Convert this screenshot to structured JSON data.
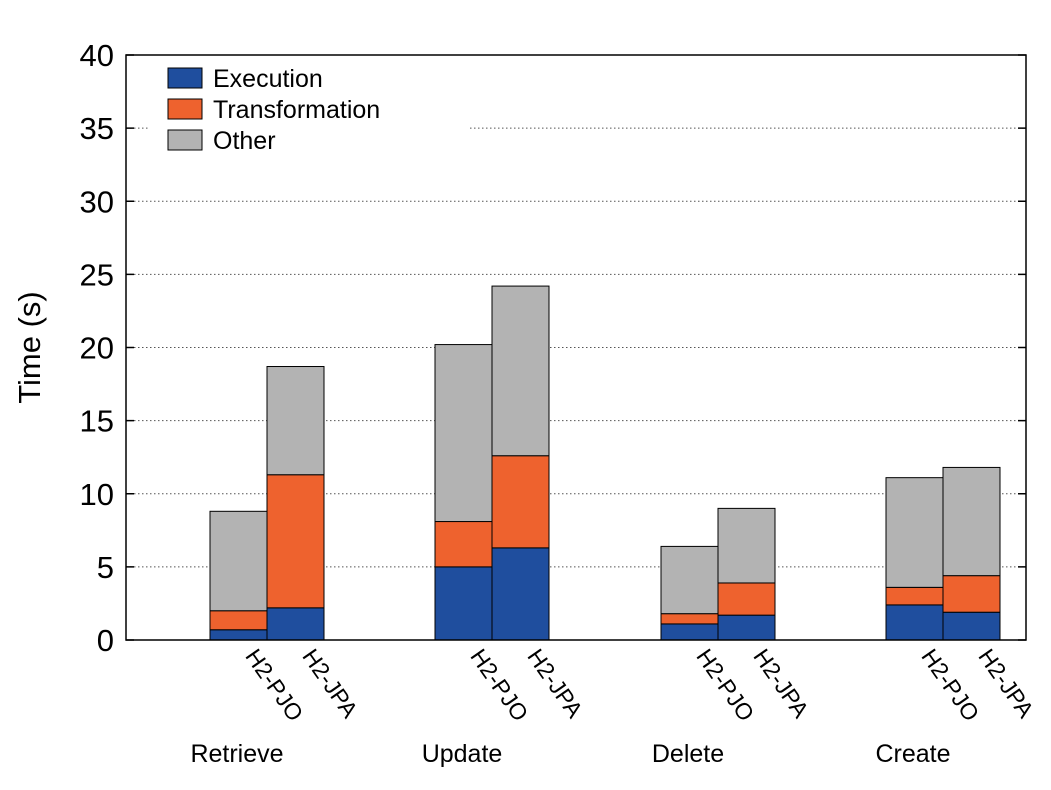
{
  "chart_data": {
    "type": "bar",
    "stacked": true,
    "title": "",
    "xlabel": "",
    "ylabel": "Time (s)",
    "ylim": [
      0,
      40
    ],
    "yticks": [
      0,
      5,
      10,
      15,
      20,
      25,
      30,
      35,
      40
    ],
    "grid": "horizontal dotted",
    "legend_position": "top-left",
    "groups": [
      {
        "label": "Retrieve",
        "bars": [
          {
            "label": "H2-PJO",
            "values": {
              "Execution": 0.7,
              "Transformation": 1.3,
              "Other": 6.8
            }
          },
          {
            "label": "H2-JPA",
            "values": {
              "Execution": 2.2,
              "Transformation": 9.1,
              "Other": 7.4
            }
          }
        ]
      },
      {
        "label": "Update",
        "bars": [
          {
            "label": "H2-PJO",
            "values": {
              "Execution": 5.0,
              "Transformation": 3.1,
              "Other": 12.1
            }
          },
          {
            "label": "H2-JPA",
            "values": {
              "Execution": 6.3,
              "Transformation": 6.3,
              "Other": 11.6
            }
          }
        ]
      },
      {
        "label": "Delete",
        "bars": [
          {
            "label": "H2-PJO",
            "values": {
              "Execution": 1.1,
              "Transformation": 0.7,
              "Other": 4.6
            }
          },
          {
            "label": "H2-JPA",
            "values": {
              "Execution": 1.7,
              "Transformation": 2.2,
              "Other": 5.1
            }
          }
        ]
      },
      {
        "label": "Create",
        "bars": [
          {
            "label": "H2-PJO",
            "values": {
              "Execution": 2.4,
              "Transformation": 1.2,
              "Other": 7.5
            }
          },
          {
            "label": "H2-JPA",
            "values": {
              "Execution": 1.9,
              "Transformation": 2.5,
              "Other": 7.4
            }
          }
        ]
      }
    ],
    "series": [
      {
        "name": "Execution",
        "color": "#1f4e9e"
      },
      {
        "name": "Transformation",
        "color": "#ee622e"
      },
      {
        "name": "Other",
        "color": "#b3b3b3"
      }
    ]
  }
}
